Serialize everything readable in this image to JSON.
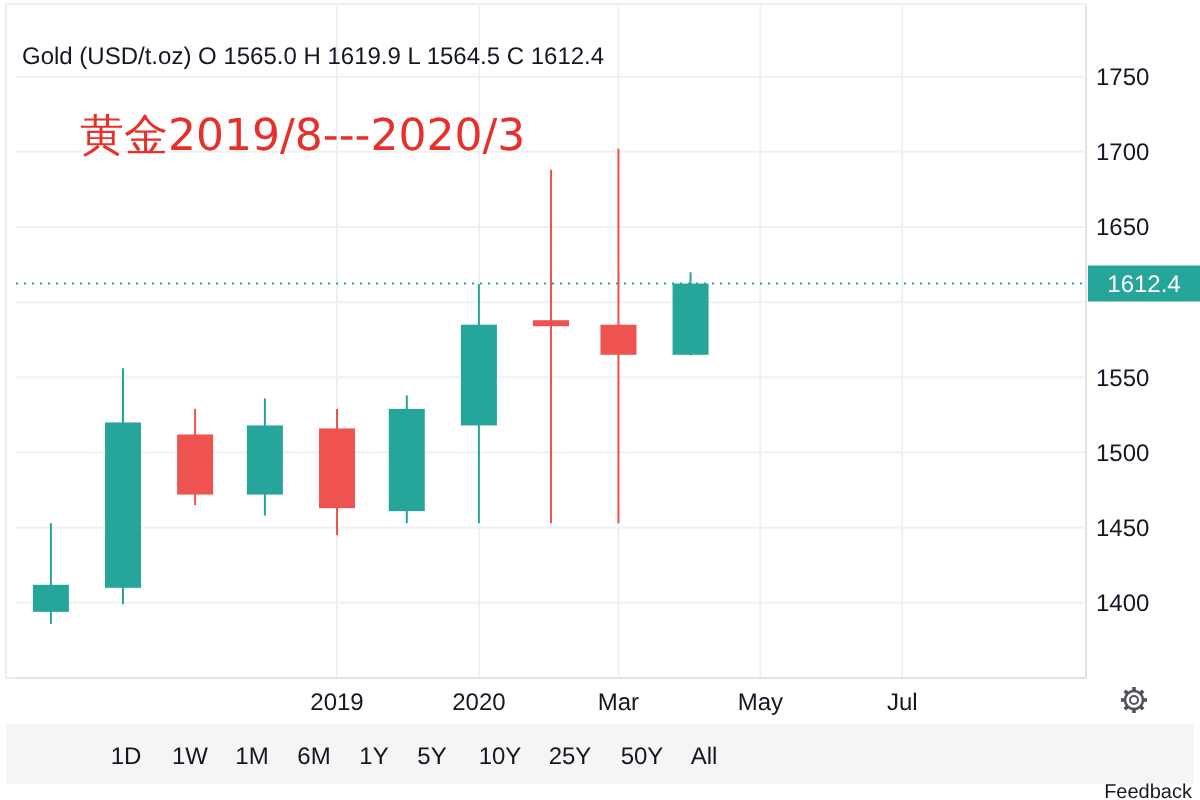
{
  "chart_data": {
    "type": "candlestick",
    "title": "Gold (USD/t.oz) O 1565.0 H 1619.9 L 1564.5 C 1612.4",
    "x": [
      "2019-07",
      "2019-08",
      "2019-09",
      "2019-10",
      "2019-11",
      "2019-12",
      "2020-01",
      "2020-02",
      "2020-03",
      "2020-04"
    ],
    "ohlc": [
      [
        1394,
        1453,
        1386,
        1412
      ],
      [
        1410,
        1556,
        1399,
        1520
      ],
      [
        1512,
        1529,
        1465,
        1472
      ],
      [
        1472,
        1536,
        1458,
        1518
      ],
      [
        1516,
        1529,
        1445,
        1463
      ],
      [
        1461,
        1538,
        1453,
        1529
      ],
      [
        1518,
        1612,
        1453,
        1585
      ],
      [
        1588,
        1688,
        1453,
        1584
      ],
      [
        1585,
        1702,
        1453,
        1565
      ],
      [
        1565.0,
        1619.9,
        1564.5,
        1612.4
      ]
    ],
    "colors": [
      "#26a69a",
      "#26a69a",
      "#ef5350",
      "#26a69a",
      "#ef5350",
      "#26a69a",
      "#26a69a",
      "#ef5350",
      "#ef5350",
      "#26a69a"
    ],
    "xlim": [
      "2019-06-16",
      "2020-09-18"
    ],
    "xticks": [
      {
        "value": "2019-11",
        "label": "2019"
      },
      {
        "value": "2020-01",
        "label": "2020"
      },
      {
        "value": "2020-03",
        "label": "Mar"
      },
      {
        "value": "2020-05",
        "label": "May"
      },
      {
        "value": "2020-07",
        "label": "Jul"
      }
    ],
    "ylim": [
      1350,
      1797
    ],
    "yticks": [
      1400,
      1450,
      1500,
      1550,
      {
        "value": 1600,
        "label": null
      },
      1650,
      1700,
      1750
    ],
    "grid": true,
    "ref_lines": [
      {
        "axis": "y",
        "value": 1612.4,
        "label": "1612.4",
        "color": "#26a69a"
      }
    ],
    "annotations": [
      "黄金2019/8---2020/3",
      "1D",
      "1W",
      "1M",
      "6M",
      "1Y",
      "5Y",
      "10Y",
      "25Y",
      "50Y",
      "All",
      "Feedback"
    ]
  }
}
